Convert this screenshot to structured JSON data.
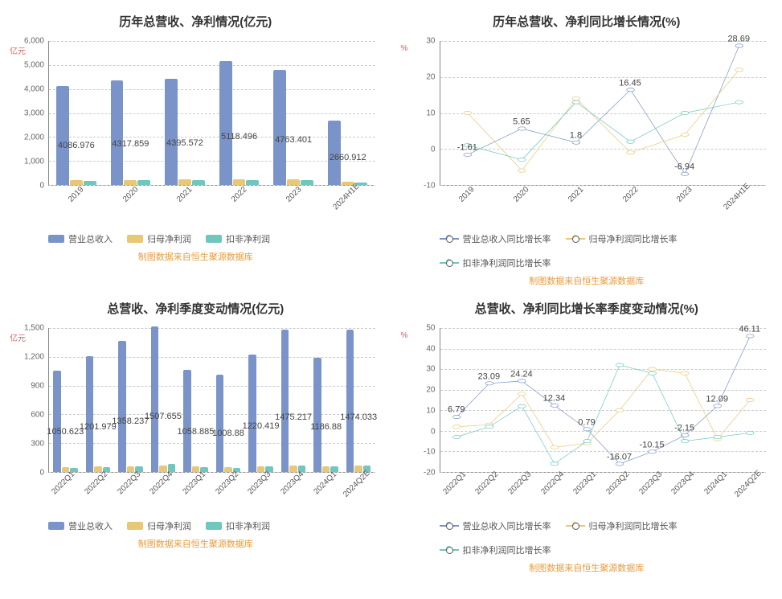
{
  "colors": {
    "series_blue": "#7a94c9",
    "series_yellow": "#e8c874",
    "series_teal": "#6fc7c0",
    "grid": "#cccccc",
    "axis": "#888888",
    "text": "#444444",
    "source": "#e89b3a",
    "ylabel": "#cc6666",
    "background": "#ffffff"
  },
  "source_text": "制图数据来自恒生聚源数据库",
  "chart_A": {
    "title": "历年总营收、净利情况(亿元)",
    "type": "bar",
    "ylabel": "亿元",
    "ylim": [
      0,
      6000
    ],
    "ytick_step": 1000,
    "categories": [
      "2019",
      "2020",
      "2021",
      "2022",
      "2023",
      "2024H1E"
    ],
    "series": [
      {
        "name": "营业总收入",
        "color_key": "series_blue",
        "values": [
          4086.976,
          4317.859,
          4395.572,
          5118.496,
          4763.401,
          2660.912
        ]
      },
      {
        "name": "归母净利润",
        "color_key": "series_yellow",
        "values": [
          200,
          210,
          220,
          230,
          230,
          120
        ]
      },
      {
        "name": "扣非净利润",
        "color_key": "series_teal",
        "values": [
          180,
          190,
          200,
          210,
          210,
          110
        ]
      }
    ],
    "primary_value_labels": [
      4086.976,
      4317.859,
      4395.572,
      5118.496,
      4763.401,
      2660.912
    ]
  },
  "chart_B": {
    "title": "历年总营收、净利同比增长情况(%)",
    "type": "line",
    "ylabel": "%",
    "ylim": [
      -10,
      30
    ],
    "ytick_step": 10,
    "categories": [
      "2019",
      "2020",
      "2021",
      "2022",
      "2023",
      "2024H1E"
    ],
    "series": [
      {
        "name": "营业总收入同比增长率",
        "color_key": "series_blue",
        "values": [
          -1.61,
          5.65,
          1.8,
          16.45,
          -6.94,
          28.69
        ],
        "show_labels": true
      },
      {
        "name": "归母净利润同比增长率",
        "color_key": "series_yellow",
        "values": [
          10,
          -6,
          14,
          -1,
          4,
          22
        ],
        "show_labels": false
      },
      {
        "name": "扣非净利润同比增长率",
        "color_key": "series_teal",
        "values": [
          1,
          -3,
          13,
          2,
          10,
          13
        ],
        "show_labels": false
      }
    ]
  },
  "chart_C": {
    "title": "总营收、净利季度变动情况(亿元)",
    "type": "bar",
    "ylabel": "亿元",
    "ylim": [
      0,
      1500
    ],
    "ytick_step": 300,
    "categories": [
      "2022Q1",
      "2022Q2",
      "2022Q3",
      "2022Q4",
      "2023Q1",
      "2023Q2",
      "2023Q3",
      "2023Q4",
      "2024Q1",
      "2024Q2E"
    ],
    "series": [
      {
        "name": "营业总收入",
        "color_key": "series_blue",
        "values": [
          1050.623,
          1201.979,
          1358.237,
          1507.655,
          1058.885,
          1008.88,
          1220.419,
          1475.217,
          1186.88,
          1474.033
        ]
      },
      {
        "name": "归母净利润",
        "color_key": "series_yellow",
        "values": [
          50,
          55,
          60,
          70,
          55,
          50,
          60,
          70,
          60,
          70
        ]
      },
      {
        "name": "扣非净利润",
        "color_key": "series_teal",
        "values": [
          45,
          50,
          55,
          80,
          50,
          45,
          55,
          65,
          55,
          65
        ]
      }
    ],
    "primary_value_labels": [
      1050.623,
      1201.979,
      1358.237,
      1507.655,
      1058.885,
      1008.88,
      1220.419,
      1475.217,
      1186.88,
      1474.033
    ]
  },
  "chart_D": {
    "title": "总营收、净利同比增长率季度变动情况(%)",
    "type": "line",
    "ylabel": "%",
    "ylim": [
      -20,
      50
    ],
    "ytick_step": 10,
    "categories": [
      "2022Q1",
      "2022Q2",
      "2022Q3",
      "2022Q4",
      "2023Q1",
      "2023Q2",
      "2023Q3",
      "2023Q4",
      "2024Q1",
      "2024Q2E"
    ],
    "series": [
      {
        "name": "营业总收入同比增长率",
        "color_key": "series_blue",
        "values": [
          6.79,
          23.09,
          24.24,
          12.34,
          0.79,
          -16.07,
          -10.15,
          -2.15,
          12.09,
          46.11
        ],
        "show_labels": true
      },
      {
        "name": "归母净利润同比增长率",
        "color_key": "series_yellow",
        "values": [
          2,
          3,
          18,
          -8,
          -6,
          10,
          30,
          28,
          -4,
          15
        ],
        "show_labels": false
      },
      {
        "name": "扣非净利润同比增长率",
        "color_key": "series_teal",
        "values": [
          -3,
          2,
          12,
          -16,
          -5,
          32,
          28,
          -5,
          -3,
          -1
        ],
        "show_labels": false
      }
    ]
  }
}
